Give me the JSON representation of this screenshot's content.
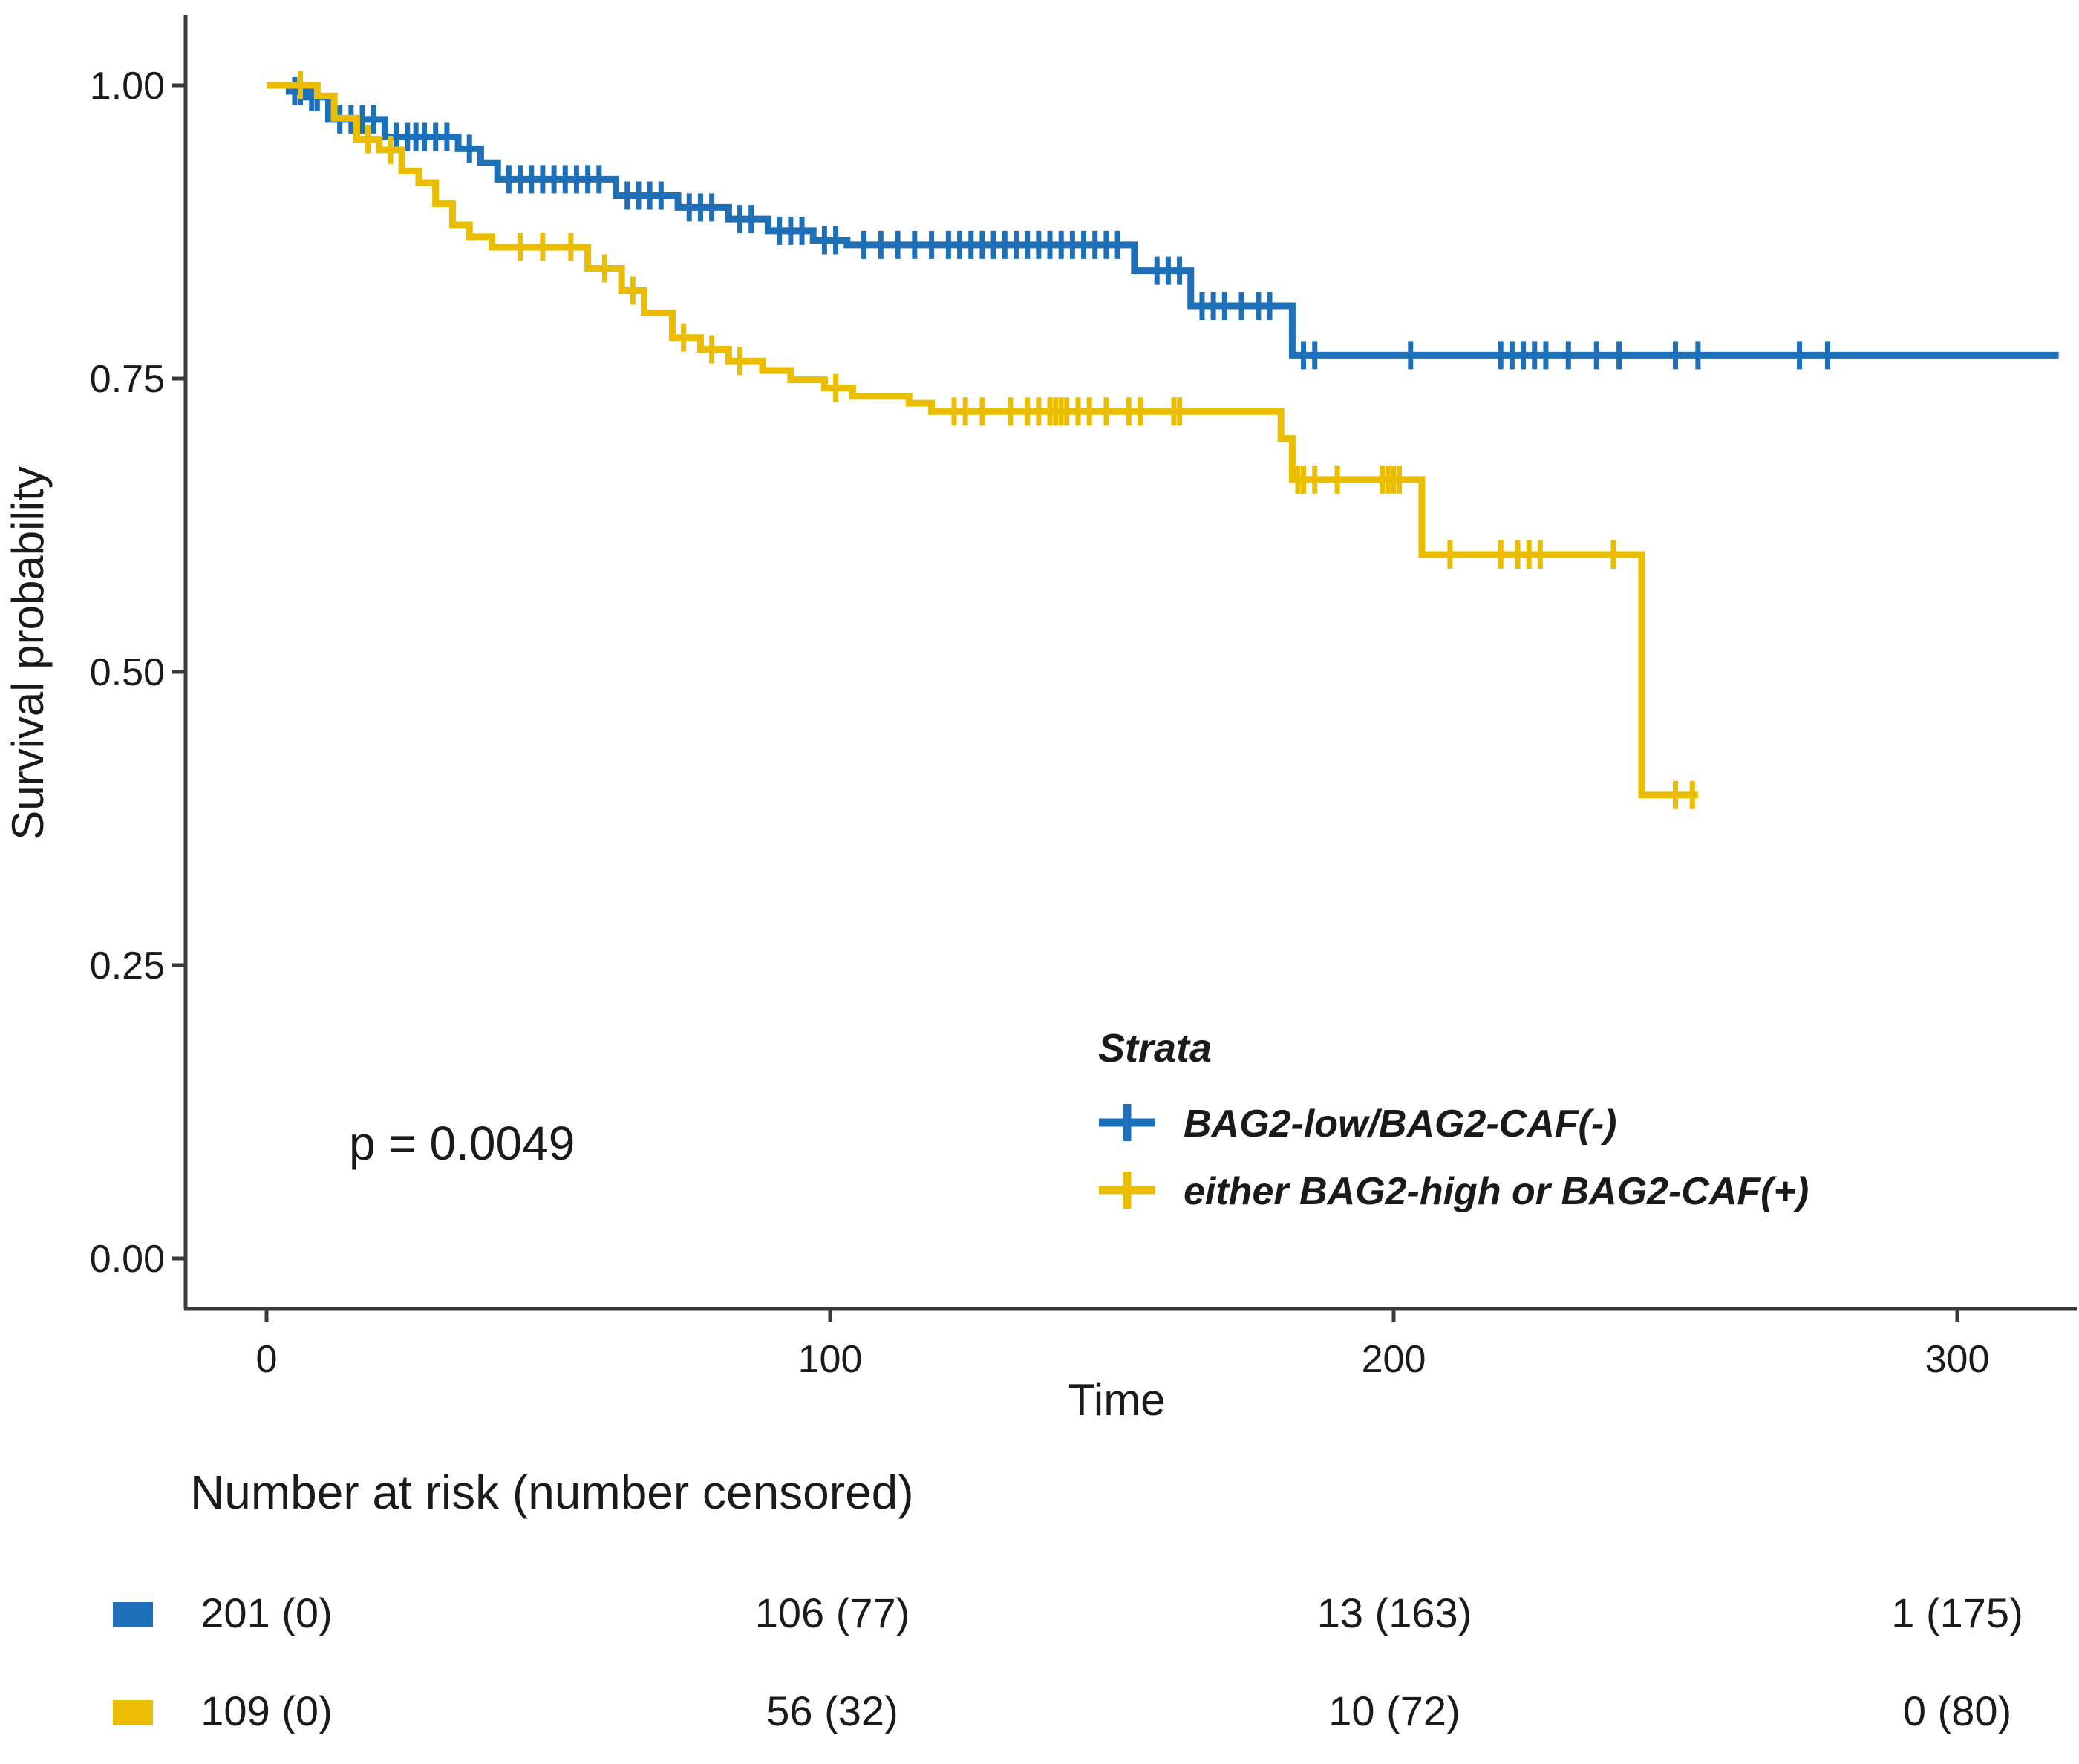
{
  "figure": {
    "background": "#ffffff",
    "axis_color": "#3a3a3a"
  },
  "legend": {
    "title": "Strata",
    "items": [
      {
        "label": "BAG2-low/BAG2-CAF(-)"
      },
      {
        "label": "either BAG2-high or BAG2-CAF(+)"
      }
    ]
  },
  "risk_table": {
    "title": "Number at risk (number censored)",
    "rows": [
      {
        "name": "BAG2-low/BAG2-CAF(-)",
        "values": [
          "201 (0)",
          "106 (77)",
          "13 (163)",
          "1 (175)"
        ]
      },
      {
        "name": "either BAG2-high or BAG2-CAF(+)",
        "values": [
          "109 (0)",
          "56 (32)",
          "10 (72)",
          "0 (80)"
        ]
      }
    ]
  },
  "chart_data": {
    "type": "line",
    "variant": "kaplan_meier_step",
    "title": "",
    "xlabel": "Time",
    "ylabel": "Survival probability",
    "p_value_label": "p = 0.0049",
    "xlim": [
      0,
      320
    ],
    "ylim": [
      0,
      1
    ],
    "grid": false,
    "legend_position": "inside-lower-right",
    "x_axis": {
      "ticks": [
        {
          "value": 0,
          "label": "0"
        },
        {
          "value": 100,
          "label": "100"
        },
        {
          "value": 200,
          "label": "200"
        },
        {
          "value": 300,
          "label": "300"
        }
      ]
    },
    "y_axis": {
      "ticks": [
        {
          "value": 1.0,
          "label": "1.00"
        },
        {
          "value": 0.75,
          "label": "0.75"
        },
        {
          "value": 0.5,
          "label": "0.50"
        },
        {
          "value": 0.25,
          "label": "0.25"
        },
        {
          "value": 0.0,
          "label": "0.00"
        }
      ]
    },
    "series": [
      {
        "name": "BAG2-low/BAG2-CAF(-)",
        "color": "#1d6fb8",
        "n_start": 201,
        "end_time": 318,
        "steps": [
          [
            0,
            1.0
          ],
          [
            4,
            0.995
          ],
          [
            7,
            0.99
          ],
          [
            11,
            0.971
          ],
          [
            21,
            0.956
          ],
          [
            34,
            0.946
          ],
          [
            38,
            0.934
          ],
          [
            41,
            0.92
          ],
          [
            62,
            0.906
          ],
          [
            73,
            0.896
          ],
          [
            82,
            0.886
          ],
          [
            89,
            0.876
          ],
          [
            97,
            0.868
          ],
          [
            103,
            0.864
          ],
          [
            154,
            0.842
          ],
          [
            164,
            0.812
          ],
          [
            182,
            0.77
          ]
        ],
        "censors": [
          [
            5,
            0.995
          ],
          [
            6,
            0.995
          ],
          [
            8,
            0.99
          ],
          [
            9,
            0.99
          ],
          [
            13,
            0.971
          ],
          [
            15,
            0.971
          ],
          [
            17,
            0.971
          ],
          [
            19,
            0.971
          ],
          [
            23,
            0.956
          ],
          [
            25,
            0.956
          ],
          [
            26.5,
            0.956
          ],
          [
            28,
            0.956
          ],
          [
            30,
            0.956
          ],
          [
            32,
            0.956
          ],
          [
            36,
            0.946
          ],
          [
            43,
            0.92
          ],
          [
            45,
            0.92
          ],
          [
            47,
            0.92
          ],
          [
            49,
            0.92
          ],
          [
            51,
            0.92
          ],
          [
            53,
            0.92
          ],
          [
            55,
            0.92
          ],
          [
            57,
            0.92
          ],
          [
            59,
            0.92
          ],
          [
            64,
            0.906
          ],
          [
            66,
            0.906
          ],
          [
            68,
            0.906
          ],
          [
            70,
            0.906
          ],
          [
            75,
            0.896
          ],
          [
            77,
            0.896
          ],
          [
            79,
            0.896
          ],
          [
            84,
            0.886
          ],
          [
            86,
            0.886
          ],
          [
            91,
            0.876
          ],
          [
            93,
            0.876
          ],
          [
            95,
            0.876
          ],
          [
            99,
            0.868
          ],
          [
            101,
            0.868
          ],
          [
            106,
            0.864
          ],
          [
            109,
            0.864
          ],
          [
            112,
            0.864
          ],
          [
            115,
            0.864
          ],
          [
            118,
            0.864
          ],
          [
            121,
            0.864
          ],
          [
            123,
            0.864
          ],
          [
            125,
            0.864
          ],
          [
            127,
            0.864
          ],
          [
            129,
            0.864
          ],
          [
            131,
            0.864
          ],
          [
            133,
            0.864
          ],
          [
            135,
            0.864
          ],
          [
            137,
            0.864
          ],
          [
            139,
            0.864
          ],
          [
            141,
            0.864
          ],
          [
            143,
            0.864
          ],
          [
            145,
            0.864
          ],
          [
            147,
            0.864
          ],
          [
            149,
            0.864
          ],
          [
            151,
            0.864
          ],
          [
            158,
            0.842
          ],
          [
            160,
            0.842
          ],
          [
            162,
            0.842
          ],
          [
            166,
            0.812
          ],
          [
            168,
            0.812
          ],
          [
            170,
            0.812
          ],
          [
            173,
            0.812
          ],
          [
            176,
            0.812
          ],
          [
            178,
            0.812
          ],
          [
            184,
            0.77
          ],
          [
            186,
            0.77
          ],
          [
            203,
            0.77
          ],
          [
            219,
            0.77
          ],
          [
            221,
            0.77
          ],
          [
            223,
            0.77
          ],
          [
            225,
            0.77
          ],
          [
            227,
            0.77
          ],
          [
            231,
            0.77
          ],
          [
            236,
            0.77
          ],
          [
            240,
            0.77
          ],
          [
            250,
            0.77
          ],
          [
            254,
            0.77
          ],
          [
            272,
            0.77
          ],
          [
            277,
            0.77
          ]
        ]
      },
      {
        "name": "either BAG2-high or BAG2-CAF(+)",
        "color": "#eabd00",
        "n_start": 109,
        "end_time": 254,
        "steps": [
          [
            0,
            1.0
          ],
          [
            9,
            0.991
          ],
          [
            12,
            0.972
          ],
          [
            16,
            0.954
          ],
          [
            20,
            0.945
          ],
          [
            24,
            0.927
          ],
          [
            27,
            0.917
          ],
          [
            30,
            0.899
          ],
          [
            33,
            0.881
          ],
          [
            36,
            0.871
          ],
          [
            40,
            0.862
          ],
          [
            57,
            0.844
          ],
          [
            63,
            0.825
          ],
          [
            67,
            0.806
          ],
          [
            72,
            0.785
          ],
          [
            77,
            0.775
          ],
          [
            82,
            0.765
          ],
          [
            88,
            0.757
          ],
          [
            93,
            0.749
          ],
          [
            99,
            0.742
          ],
          [
            104,
            0.735
          ],
          [
            114,
            0.729
          ],
          [
            118,
            0.722
          ],
          [
            180,
            0.699
          ],
          [
            182,
            0.664
          ],
          [
            205,
            0.6
          ],
          [
            244,
            0.395
          ]
        ],
        "censors": [
          [
            6,
            1.0
          ],
          [
            18,
            0.954
          ],
          [
            22,
            0.945
          ],
          [
            45,
            0.862
          ],
          [
            49,
            0.862
          ],
          [
            54,
            0.862
          ],
          [
            60,
            0.844
          ],
          [
            65,
            0.825
          ],
          [
            74,
            0.785
          ],
          [
            79,
            0.775
          ],
          [
            84,
            0.765
          ],
          [
            101,
            0.742
          ],
          [
            122,
            0.722
          ],
          [
            124,
            0.722
          ],
          [
            127,
            0.722
          ],
          [
            132,
            0.722
          ],
          [
            135,
            0.722
          ],
          [
            137,
            0.722
          ],
          [
            139,
            0.722
          ],
          [
            140,
            0.722
          ],
          [
            141,
            0.722
          ],
          [
            142,
            0.722
          ],
          [
            144,
            0.722
          ],
          [
            146,
            0.722
          ],
          [
            149,
            0.722
          ],
          [
            153,
            0.722
          ],
          [
            155,
            0.722
          ],
          [
            161,
            0.722
          ],
          [
            162,
            0.722
          ],
          [
            183,
            0.664
          ],
          [
            184,
            0.664
          ],
          [
            186,
            0.664
          ],
          [
            190,
            0.664
          ],
          [
            198,
            0.664
          ],
          [
            199,
            0.664
          ],
          [
            200,
            0.664
          ],
          [
            201,
            0.664
          ],
          [
            210,
            0.6
          ],
          [
            219,
            0.6
          ],
          [
            222,
            0.6
          ],
          [
            224,
            0.6
          ],
          [
            226,
            0.6
          ],
          [
            239,
            0.6
          ],
          [
            250,
            0.395
          ],
          [
            253,
            0.395
          ]
        ]
      }
    ]
  }
}
